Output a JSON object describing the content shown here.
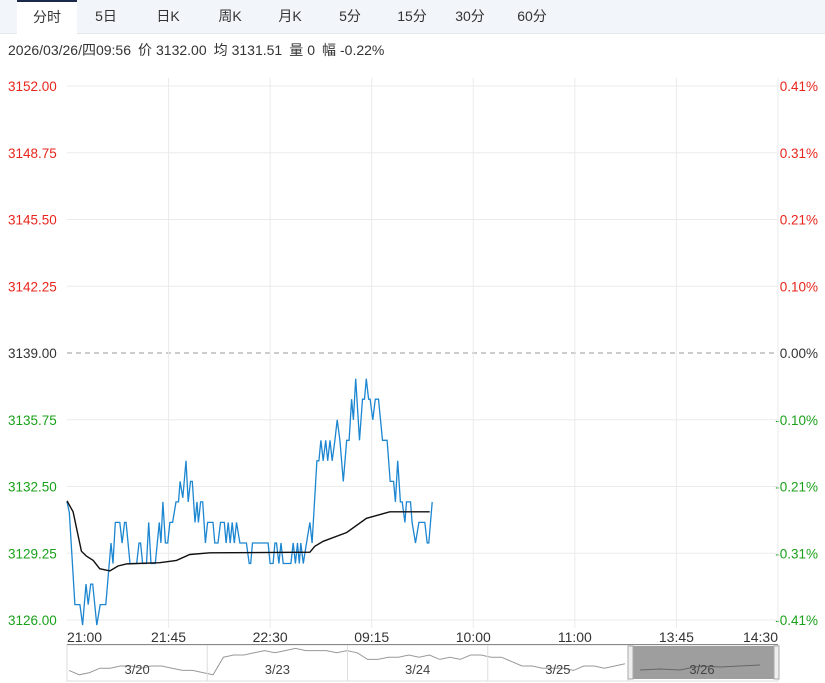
{
  "tabs": [
    {
      "label": "分时",
      "active": true
    },
    {
      "label": "5日"
    },
    {
      "label": "日K"
    },
    {
      "label": "周K"
    },
    {
      "label": "月K"
    },
    {
      "label": "5分"
    },
    {
      "label": "15分"
    },
    {
      "label": "30分"
    },
    {
      "label": "60分"
    }
  ],
  "info": {
    "datetime": "2026/03/26/四09:56",
    "price_label": "价",
    "price": "3132.00",
    "avg_label": "均",
    "avg": "3131.51",
    "vol_label": "量",
    "vol": "0",
    "chg_label": "幅",
    "chg": "-0.22%"
  },
  "colors": {
    "up": "#e8251c",
    "down": "#1aa11a",
    "price_line": "#1c86d1",
    "avg_line": "#111111",
    "grid": "#ebebeb"
  },
  "chart_data": {
    "type": "line",
    "prev_close": 3139.0,
    "ylim": [
      3126.0,
      3152.0
    ],
    "left_ticks": [
      "3152.00",
      "3148.75",
      "3145.50",
      "3142.25",
      "3139.00",
      "3135.75",
      "3132.50",
      "3129.25",
      "3126.00"
    ],
    "right_ticks": [
      "0.41%",
      "0.31%",
      "0.21%",
      "0.10%",
      "0.00%",
      "-0.10%",
      "-0.21%",
      "-0.31%",
      "-0.41%"
    ],
    "x_ticks": [
      "21:00",
      "21:45",
      "22:30",
      "09:15",
      "10:00",
      "11:00",
      "13:45",
      "14:30"
    ],
    "total_minutes": 315,
    "series": [
      {
        "name": "price",
        "points": [
          [
            0,
            3132
          ],
          [
            1,
            3131.5
          ],
          [
            3.5,
            3127
          ],
          [
            5.7,
            3127
          ],
          [
            6.9,
            3126
          ],
          [
            8.4,
            3128
          ],
          [
            9.4,
            3127
          ],
          [
            10.5,
            3128
          ],
          [
            11.4,
            3128
          ],
          [
            13.2,
            3126
          ],
          [
            14.7,
            3127
          ],
          [
            17.2,
            3127
          ],
          [
            19.5,
            3130
          ],
          [
            20.4,
            3129
          ],
          [
            21.4,
            3131
          ],
          [
            23.4,
            3131
          ],
          [
            24.4,
            3130
          ],
          [
            25.5,
            3131
          ],
          [
            26.2,
            3131
          ],
          [
            27.9,
            3129
          ],
          [
            30.9,
            3129
          ],
          [
            31.9,
            3130
          ],
          [
            32.6,
            3130
          ],
          [
            33.5,
            3129
          ],
          [
            35.2,
            3129
          ],
          [
            36.2,
            3131
          ],
          [
            37.2,
            3129
          ],
          [
            39.1,
            3129
          ],
          [
            40.9,
            3131
          ],
          [
            41.6,
            3130
          ],
          [
            42.5,
            3132
          ],
          [
            43.6,
            3130
          ],
          [
            44.6,
            3130
          ],
          [
            45.6,
            3131
          ],
          [
            46.8,
            3131
          ],
          [
            48.3,
            3132
          ],
          [
            49.4,
            3132
          ],
          [
            50.1,
            3133
          ],
          [
            51.3,
            3132.2
          ],
          [
            52.7,
            3134
          ],
          [
            53.7,
            3132
          ],
          [
            54.7,
            3133
          ],
          [
            55.5,
            3133
          ],
          [
            56.7,
            3131
          ],
          [
            57.6,
            3132
          ],
          [
            58.2,
            3131
          ],
          [
            59.2,
            3132
          ],
          [
            60.1,
            3132
          ],
          [
            61.3,
            3130
          ],
          [
            62.3,
            3131
          ],
          [
            64.7,
            3131
          ],
          [
            65.5,
            3130
          ],
          [
            66.9,
            3130
          ],
          [
            68,
            3131
          ],
          [
            69.7,
            3131
          ],
          [
            70.5,
            3130
          ],
          [
            71.4,
            3131
          ],
          [
            72.3,
            3130
          ],
          [
            73.2,
            3131
          ],
          [
            74.1,
            3130
          ],
          [
            75.1,
            3131
          ],
          [
            76.6,
            3130
          ],
          [
            79.5,
            3130
          ],
          [
            80.7,
            3129
          ],
          [
            81.4,
            3129
          ],
          [
            82.2,
            3130
          ],
          [
            89.1,
            3130
          ],
          [
            90,
            3129
          ],
          [
            91.3,
            3129
          ],
          [
            92.1,
            3130
          ],
          [
            92.8,
            3130
          ],
          [
            93.9,
            3129
          ],
          [
            94.8,
            3130
          ],
          [
            95.8,
            3129
          ],
          [
            99.2,
            3129
          ],
          [
            100.2,
            3130
          ],
          [
            101.2,
            3129
          ],
          [
            102.1,
            3130
          ],
          [
            102.9,
            3129
          ],
          [
            103.6,
            3130
          ],
          [
            104.7,
            3129
          ],
          [
            106.1,
            3130
          ],
          [
            107.6,
            3131
          ],
          [
            108.6,
            3130
          ],
          [
            110.7,
            3134
          ],
          [
            111.6,
            3134
          ],
          [
            112.5,
            3135
          ],
          [
            113.5,
            3134
          ],
          [
            114.6,
            3135
          ],
          [
            115.5,
            3134
          ],
          [
            116.5,
            3135
          ],
          [
            117.5,
            3134
          ],
          [
            118.7,
            3135
          ],
          [
            119.7,
            3136
          ],
          [
            120.9,
            3135
          ],
          [
            122.4,
            3133
          ],
          [
            123.9,
            3135
          ],
          [
            125,
            3135
          ],
          [
            126.1,
            3137
          ],
          [
            126.9,
            3136
          ],
          [
            127.9,
            3138
          ],
          [
            129.6,
            3135
          ],
          [
            130.9,
            3137
          ],
          [
            131.8,
            3137
          ],
          [
            132.6,
            3138
          ],
          [
            133.6,
            3137
          ],
          [
            134.3,
            3137
          ],
          [
            135.5,
            3136
          ],
          [
            136.6,
            3137
          ],
          [
            138,
            3137
          ],
          [
            139.8,
            3135
          ],
          [
            141.8,
            3135
          ],
          [
            143.2,
            3133
          ],
          [
            144.7,
            3133
          ],
          [
            145.5,
            3132
          ],
          [
            146.5,
            3134
          ],
          [
            147.7,
            3132
          ],
          [
            148.5,
            3132
          ],
          [
            149.7,
            3131
          ],
          [
            150.4,
            3132
          ],
          [
            152.2,
            3132
          ],
          [
            152.9,
            3131
          ],
          [
            154.4,
            3130
          ],
          [
            155.9,
            3131
          ],
          [
            158.5,
            3131
          ],
          [
            159.6,
            3130
          ],
          [
            160.3,
            3130
          ],
          [
            161.8,
            3132
          ]
        ]
      },
      {
        "name": "avg",
        "points": [
          [
            0,
            3132.05
          ],
          [
            2.7,
            3131.52
          ],
          [
            6.4,
            3129.6
          ],
          [
            8.6,
            3129.36
          ],
          [
            11.6,
            3129.15
          ],
          [
            14.5,
            3128.75
          ],
          [
            19,
            3128.64
          ],
          [
            22.6,
            3128.88
          ],
          [
            26.3,
            3128.98
          ],
          [
            41.1,
            3129.04
          ],
          [
            48.5,
            3129.15
          ],
          [
            54.4,
            3129.44
          ],
          [
            63.3,
            3129.52
          ],
          [
            107.6,
            3129.55
          ],
          [
            109.8,
            3129.84
          ],
          [
            113.5,
            3130.08
          ],
          [
            123.9,
            3130.51
          ],
          [
            132.7,
            3131.2
          ],
          [
            143,
            3131.52
          ],
          [
            160.7,
            3131.52
          ]
        ]
      }
    ],
    "navigator": {
      "days": [
        "3/20",
        "3/23",
        "3/24",
        "3/25",
        "3/26"
      ],
      "selected_day": "3/26",
      "values": [
        3,
        1,
        2,
        4,
        4,
        5,
        5,
        4,
        5,
        5,
        4,
        3,
        3,
        2,
        1,
        9,
        10,
        10,
        11,
        12,
        11,
        12,
        13,
        12,
        12,
        12,
        11,
        12,
        11,
        8,
        8,
        9,
        9,
        10,
        9,
        10,
        8,
        9,
        8,
        10,
        10,
        9,
        9,
        7,
        5,
        5,
        4,
        4,
        4,
        3,
        5,
        5,
        4,
        5,
        6
      ]
    }
  }
}
